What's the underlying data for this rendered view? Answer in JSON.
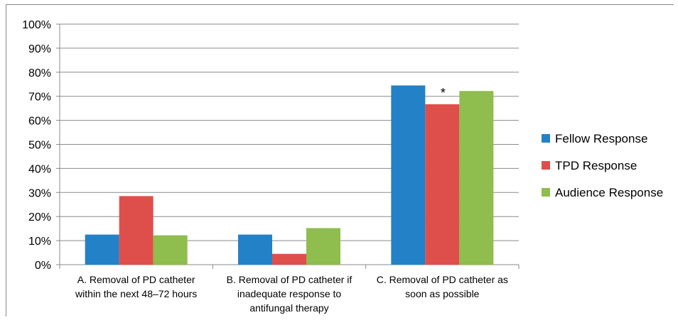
{
  "chart_data": {
    "type": "bar",
    "categories": [
      [
        "A. Removal of PD catheter",
        "within the next 48–72 hours"
      ],
      [
        "B. Removal of PD catheter if",
        "inadequate response to",
        "antifungal therapy"
      ],
      [
        "C. Removal of PD catheter as",
        "soon as possible"
      ]
    ],
    "series": [
      {
        "name": "Fellow Response",
        "color": "#2381C7",
        "values": [
          12.5,
          12.5,
          74.5
        ]
      },
      {
        "name": "TPD Response",
        "color": "#DE4F4B",
        "values": [
          28.5,
          4.5,
          66.7
        ]
      },
      {
        "name": "Audience Response",
        "color": "#8FBD4E",
        "values": [
          12.2,
          15.2,
          72.2
        ]
      }
    ],
    "ylim": [
      0,
      100
    ],
    "yticks": [
      "0%",
      "10%",
      "20%",
      "30%",
      "40%",
      "50%",
      "60%",
      "70%",
      "80%",
      "90%",
      "100%"
    ],
    "grid": true,
    "legend": "right",
    "annotations": [
      {
        "text": "*",
        "category": 2,
        "series": 1
      }
    ]
  }
}
